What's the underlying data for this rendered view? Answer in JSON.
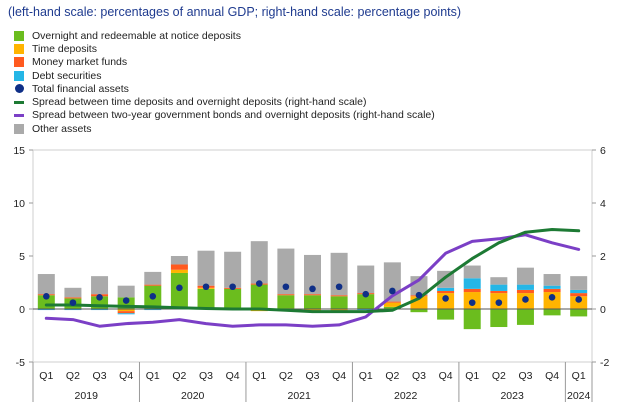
{
  "subtitle": "(left-hand scale: percentages of annual GDP; right-hand scale: percentage points)",
  "colors": {
    "overnight": "#6bbd1e",
    "time": "#ffb400",
    "mmf": "#ff5a1f",
    "debt": "#25b6e6",
    "total": "#0f2f87",
    "spread_time": "#1d7a34",
    "spread_bond": "#7b3fc6",
    "other": "#aaaaaa"
  },
  "legend": [
    {
      "key": "overnight",
      "label": "Overnight and redeemable at notice deposits",
      "kind": "box"
    },
    {
      "key": "time",
      "label": "Time deposits",
      "kind": "box"
    },
    {
      "key": "mmf",
      "label": "Money market funds",
      "kind": "box"
    },
    {
      "key": "debt",
      "label": "Debt securities",
      "kind": "box"
    },
    {
      "key": "total",
      "label": "Total financial assets",
      "kind": "dot"
    },
    {
      "key": "spread_time",
      "label": "Spread between time deposits and overnight deposits (right-hand scale)",
      "kind": "line"
    },
    {
      "key": "spread_bond",
      "label": "Spread between two-year government bonds and overnight deposits (right-hand scale)",
      "kind": "line"
    },
    {
      "key": "other",
      "label": "Other assets",
      "kind": "box"
    }
  ],
  "chart_data": {
    "type": "bar",
    "title": "",
    "categories": [
      "Q1",
      "Q2",
      "Q3",
      "Q4",
      "Q1",
      "Q2",
      "Q3",
      "Q4",
      "Q1",
      "Q2",
      "Q3",
      "Q4",
      "Q1",
      "Q2",
      "Q3",
      "Q4",
      "Q1",
      "Q2",
      "Q3",
      "Q4",
      "Q1"
    ],
    "years": [
      {
        "label": "2019",
        "quarters": 4
      },
      {
        "label": "2020",
        "quarters": 4
      },
      {
        "label": "2021",
        "quarters": 4
      },
      {
        "label": "2022",
        "quarters": 4
      },
      {
        "label": "2023",
        "quarters": 4
      },
      {
        "label": "2024",
        "quarters": 1
      }
    ],
    "y_left": {
      "min": -5,
      "max": 15,
      "ticks": [
        -5,
        0,
        5,
        10,
        15
      ]
    },
    "y_right": {
      "min": -2,
      "max": 6,
      "ticks": [
        -2,
        0,
        2,
        4,
        6
      ]
    },
    "stacked_series": [
      {
        "key": "overnight",
        "name": "Overnight and redeemable at notice deposits",
        "values": [
          1.3,
          1.0,
          1.2,
          1.1,
          2.2,
          3.4,
          1.9,
          1.9,
          2.3,
          1.3,
          1.3,
          1.2,
          1.4,
          0.2,
          -0.3,
          -1.0,
          -1.9,
          -1.7,
          -1.5,
          -0.6,
          -0.7
        ]
      },
      {
        "key": "time",
        "name": "Time deposits",
        "values": [
          0.0,
          0.0,
          0.0,
          -0.2,
          0.0,
          0.3,
          0.1,
          0.0,
          -0.2,
          -0.2,
          -0.2,
          -0.2,
          0.0,
          0.4,
          1.2,
          1.5,
          1.6,
          1.5,
          1.5,
          1.6,
          1.2
        ]
      },
      {
        "key": "mmf",
        "name": "Money market funds",
        "values": [
          0.1,
          0.1,
          0.2,
          -0.2,
          0.1,
          0.5,
          0.2,
          0.1,
          0.1,
          0.1,
          0.1,
          0.1,
          0.1,
          0.1,
          0.1,
          0.2,
          0.3,
          0.2,
          0.3,
          0.3,
          0.3
        ]
      },
      {
        "key": "debt",
        "name": "Debt securities",
        "values": [
          -0.1,
          -0.1,
          -0.1,
          -0.1,
          -0.1,
          0.0,
          0.0,
          0.0,
          0.0,
          0.0,
          -0.1,
          0.0,
          -0.1,
          0.0,
          0.0,
          0.3,
          1.0,
          0.6,
          0.5,
          0.3,
          0.3
        ]
      },
      {
        "key": "other",
        "name": "Other assets",
        "values": [
          1.9,
          0.9,
          1.7,
          1.1,
          1.2,
          0.8,
          3.3,
          3.4,
          4.0,
          4.3,
          3.7,
          4.0,
          2.6,
          3.7,
          1.8,
          1.6,
          1.2,
          0.7,
          1.6,
          1.1,
          1.3
        ]
      }
    ],
    "total_financial_assets": [
      1.2,
      0.6,
      1.1,
      0.8,
      1.2,
      2.0,
      2.1,
      2.1,
      2.4,
      2.1,
      1.9,
      2.1,
      1.4,
      1.7,
      1.3,
      1.0,
      0.6,
      0.6,
      0.9,
      1.1,
      0.9
    ],
    "spread_time_overnight": [
      0.15,
      0.15,
      0.12,
      0.1,
      0.08,
      0.05,
      0.02,
      0.0,
      0.0,
      -0.05,
      -0.1,
      -0.1,
      -0.1,
      -0.05,
      0.4,
      1.2,
      1.9,
      2.5,
      2.9,
      3.0,
      2.95
    ],
    "spread_bond_overnight": [
      -0.35,
      -0.4,
      -0.65,
      -0.55,
      -0.5,
      -0.4,
      -0.55,
      -0.65,
      -0.6,
      -0.6,
      -0.65,
      -0.6,
      -0.3,
      0.5,
      1.1,
      2.1,
      2.55,
      2.65,
      2.8,
      2.5,
      2.25
    ]
  }
}
